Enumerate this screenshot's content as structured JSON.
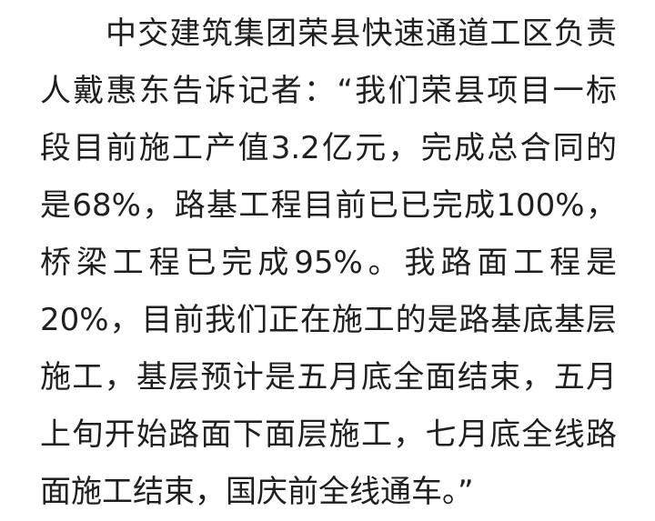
{
  "article": {
    "lines": [
      "中交建筑集团荣县快速通道工区负责",
      "人戴惠东告诉记者：“我们荣县项目一标",
      "段目前施工产值3.2亿元，完成总合同的",
      "是68%，路基工程目前已已完成100%，",
      "桥梁工程已完成95%。我路面工程是",
      "20%，目前我们正在施工的是路基底基层",
      "施工，基层预计是五月底全面结束，五月",
      "上旬开始路面下面层施工，七月底全线路",
      "面施工结束，国庆前全线通车。”"
    ]
  }
}
